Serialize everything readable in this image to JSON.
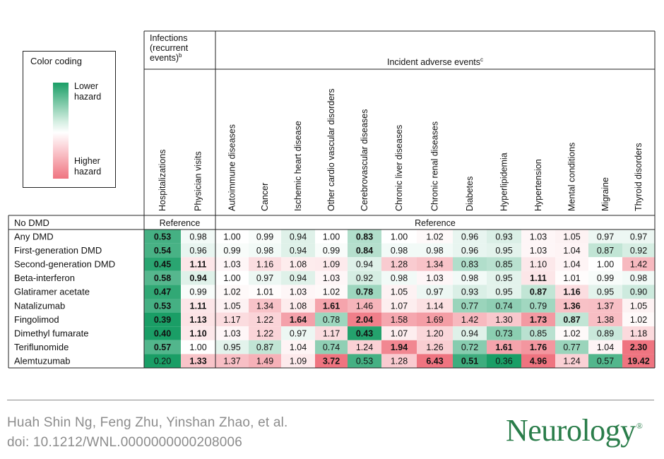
{
  "legend": {
    "title": "Color coding",
    "low_label": "Lower hazard",
    "high_label": "Higher hazard",
    "low_color": "#1a9e66",
    "high_color": "#ef7480"
  },
  "chart_data": {
    "type": "heatmap",
    "column_groups": [
      {
        "label": "Infections (recurrent events)",
        "superscript": "b",
        "columns": 2
      },
      {
        "label": "Incident adverse events",
        "superscript": "c",
        "columns": 13
      }
    ],
    "columns": [
      "Hospitalizations",
      "Physician visits",
      "Autoimmune diseases",
      "Cancer",
      "Ischemic heart disease",
      "Other cardio vascular disorders",
      "Cerebrovascular diseases",
      "Chronic liver diseases",
      "Chronic renal diseases",
      "Diabetes",
      "Hyperlipidemia",
      "Hypertension",
      "Mental conditions",
      "Migraine",
      "Thyroid disorders"
    ],
    "reference_row": {
      "label": "No DMD",
      "group_1_text": "Reference",
      "group_2_text": "Reference"
    },
    "rows": [
      {
        "label": "Any DMD",
        "values": [
          "0.53",
          "0.98",
          "1.00",
          "0.99",
          "0.94",
          "1.00",
          "0.83",
          "1.00",
          "1.02",
          "0.96",
          "0.93",
          "1.03",
          "1.05",
          "0.97",
          "0.97"
        ],
        "bold": [
          true,
          false,
          false,
          false,
          false,
          false,
          true,
          false,
          false,
          false,
          false,
          false,
          false,
          false,
          false
        ]
      },
      {
        "label": "First-generation DMD",
        "values": [
          "0.54",
          "0.96",
          "0.99",
          "0.98",
          "0.94",
          "0.99",
          "0.84",
          "0.98",
          "0.98",
          "0.96",
          "0.95",
          "1.03",
          "1.04",
          "0.87",
          "0.92"
        ],
        "bold": [
          true,
          false,
          false,
          false,
          false,
          false,
          true,
          false,
          false,
          false,
          false,
          false,
          false,
          false,
          false
        ]
      },
      {
        "label": "Second-generation DMD",
        "values": [
          "0.45",
          "1.11",
          "1.03",
          "1.16",
          "1.08",
          "1.09",
          "0.94",
          "1.28",
          "1.34",
          "0.83",
          "0.85",
          "1.10",
          "1.04",
          "1.00",
          "1.42"
        ],
        "bold": [
          true,
          true,
          false,
          false,
          false,
          false,
          false,
          false,
          false,
          false,
          false,
          false,
          false,
          false,
          false
        ]
      },
      {
        "label": "Beta-interferon",
        "values": [
          "0.58",
          "0.94",
          "1.00",
          "0.97",
          "0.94",
          "1.03",
          "0.92",
          "0.98",
          "1.03",
          "0.98",
          "0.95",
          "1.11",
          "1.01",
          "0.99",
          "0.98"
        ],
        "bold": [
          true,
          true,
          false,
          false,
          false,
          false,
          false,
          false,
          false,
          false,
          false,
          true,
          false,
          false,
          false
        ]
      },
      {
        "label": "Glatiramer acetate",
        "values": [
          "0.47",
          "0.99",
          "1.02",
          "1.01",
          "1.03",
          "1.02",
          "0.78",
          "1.05",
          "0.97",
          "0.93",
          "0.95",
          "0.87",
          "1.16",
          "0.95",
          "0.90"
        ],
        "bold": [
          true,
          false,
          false,
          false,
          false,
          false,
          true,
          false,
          false,
          false,
          false,
          true,
          true,
          false,
          false
        ]
      },
      {
        "label": "Natalizumab",
        "values": [
          "0.53",
          "1.11",
          "1.05",
          "1.34",
          "1.08",
          "1.61",
          "1.46",
          "1.07",
          "1.14",
          "0.77",
          "0.74",
          "0.79",
          "1.36",
          "1.37",
          "1.05"
        ],
        "bold": [
          true,
          true,
          false,
          false,
          false,
          true,
          false,
          false,
          false,
          false,
          false,
          false,
          true,
          false,
          false
        ]
      },
      {
        "label": "Fingolimod",
        "values": [
          "0.39",
          "1.13",
          "1.17",
          "1.22",
          "1.64",
          "0.78",
          "2.04",
          "1.58",
          "1.69",
          "1.42",
          "1.30",
          "1.73",
          "0.87",
          "1.38",
          "1.02"
        ],
        "bold": [
          true,
          true,
          false,
          false,
          true,
          false,
          true,
          false,
          false,
          false,
          false,
          true,
          true,
          false,
          false
        ]
      },
      {
        "label": "Dimethyl fumarate",
        "values": [
          "0.40",
          "1.10",
          "1.03",
          "1.22",
          "0.97",
          "1.17",
          "0.43",
          "1.07",
          "1.20",
          "0.94",
          "0.73",
          "0.85",
          "1.02",
          "0.89",
          "1.18"
        ],
        "bold": [
          true,
          true,
          false,
          false,
          false,
          false,
          true,
          false,
          false,
          false,
          false,
          false,
          false,
          false,
          false
        ]
      },
      {
        "label": "Teriflunomide",
        "values": [
          "0.57",
          "1.00",
          "0.95",
          "0.87",
          "1.04",
          "0.74",
          "1.24",
          "1.94",
          "1.26",
          "0.72",
          "1.61",
          "1.76",
          "0.77",
          "1.04",
          "2.30"
        ],
        "bold": [
          true,
          false,
          false,
          false,
          false,
          false,
          false,
          true,
          false,
          false,
          true,
          true,
          false,
          false,
          true
        ]
      },
      {
        "label": "Alemtuzumab",
        "values": [
          "0.20",
          "1.33",
          "1.37",
          "1.49",
          "1.09",
          "3.72",
          "0.53",
          "1.28",
          "6.43",
          "0.51",
          "0.36",
          "4.96",
          "1.24",
          "0.57",
          "19.42"
        ],
        "bold": [
          false,
          true,
          false,
          false,
          false,
          true,
          false,
          false,
          true,
          true,
          false,
          true,
          false,
          false,
          true
        ]
      }
    ]
  },
  "footer": {
    "authors": "Huah Shin Ng, Feng Zhu, Yinshan Zhao, et al.",
    "doi": "doi: 10.1212/WNL.0000000000208006",
    "brand": "Neurology",
    "brand_mark": "®"
  }
}
